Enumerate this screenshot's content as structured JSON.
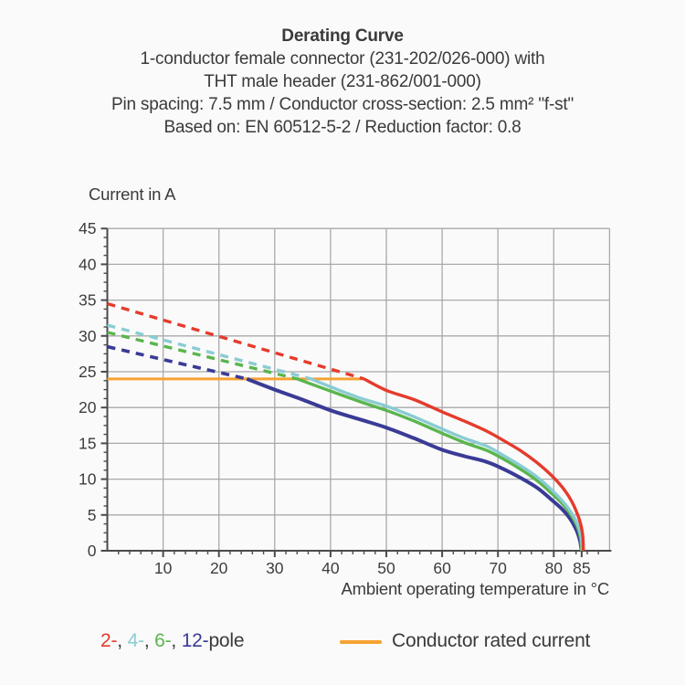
{
  "header": {
    "title": "Derating Curve",
    "lines": [
      "1-conductor female connector (231-202/026-000) with",
      "THT male header (231-862/001-000)",
      "Pin spacing: 7.5 mm / Conductor cross-section: 2.5 mm² \"f-st\"",
      "Based on: EN 60512-5-2 / Reduction factor: 0.8"
    ]
  },
  "chart_data": {
    "type": "line",
    "title": "Derating Curve",
    "xlabel": "Ambient operating temperature in °C",
    "ylabel": "Current in A",
    "xlim": [
      0,
      90
    ],
    "ylim": [
      0,
      45
    ],
    "x_major_ticks": [
      10,
      20,
      30,
      40,
      50,
      60,
      70,
      80,
      85
    ],
    "x_tick_labels": [
      "10",
      "20",
      "30",
      "40",
      "50",
      "60",
      "70",
      "80",
      "85"
    ],
    "y_major_ticks": [
      0,
      5,
      10,
      15,
      20,
      25,
      30,
      35,
      40,
      45
    ],
    "y_tick_labels": [
      "0",
      "5",
      "10",
      "15",
      "20",
      "25",
      "30",
      "35",
      "40",
      "45"
    ],
    "x_minor_step": 2,
    "y_minor_step": 1.25,
    "grid": true,
    "x_gridlines": [
      10,
      20,
      30,
      40,
      50,
      60,
      70,
      80,
      90
    ],
    "y_gridlines": [
      5,
      10,
      15,
      20,
      25,
      30,
      35,
      40,
      45
    ],
    "colors": {
      "grid": "#a9a9a9",
      "axis": "#4b4b4b",
      "text": "#3d3d3d"
    },
    "series": [
      {
        "name": "conductor-rated-current",
        "color": "#f7a233",
        "width": 3,
        "dash": null,
        "smooth": false,
        "points": [
          [
            0,
            24
          ],
          [
            46,
            24
          ]
        ]
      },
      {
        "name": "2-pole-limited-by-rated-current",
        "color": "#e53b2c",
        "width": 3.4,
        "dash": "9 7",
        "smooth": false,
        "points": [
          [
            0,
            34.5
          ],
          [
            46,
            24
          ]
        ]
      },
      {
        "name": "4-pole-limited-by-rated-current",
        "color": "#8accd3",
        "width": 3.4,
        "dash": "9 7",
        "smooth": false,
        "points": [
          [
            0,
            31.5
          ],
          [
            36.5,
            24
          ]
        ]
      },
      {
        "name": "6-pole-limited-by-rated-current",
        "color": "#5ab54d",
        "width": 3.4,
        "dash": "9 7",
        "smooth": false,
        "points": [
          [
            0,
            30.5
          ],
          [
            34,
            24
          ]
        ]
      },
      {
        "name": "12-pole-limited-by-rated-current",
        "color": "#3a3b96",
        "width": 3.6,
        "dash": "9 7",
        "smooth": false,
        "points": [
          [
            0,
            28.5
          ],
          [
            25,
            24
          ]
        ]
      },
      {
        "name": "12-pole-derating",
        "color": "#3a3b96",
        "width": 4,
        "dash": null,
        "smooth": true,
        "points": [
          [
            25,
            24
          ],
          [
            30,
            22.5
          ],
          [
            35,
            21.1
          ],
          [
            40,
            19.6
          ],
          [
            45,
            18.4
          ],
          [
            50,
            17.2
          ],
          [
            55,
            15.7
          ],
          [
            60,
            14.1
          ],
          [
            64,
            13.2
          ],
          [
            68,
            12.4
          ],
          [
            71,
            11.4
          ],
          [
            74,
            10.2
          ],
          [
            77,
            8.8
          ],
          [
            79.5,
            7.2
          ],
          [
            81.5,
            5.8
          ],
          [
            83,
            4.4
          ],
          [
            84.1,
            2.8
          ],
          [
            84.7,
            1.4
          ],
          [
            85,
            0
          ]
        ]
      },
      {
        "name": "6-pole-derating",
        "color": "#5ab54d",
        "width": 3.4,
        "dash": null,
        "smooth": true,
        "points": [
          [
            34,
            24
          ],
          [
            40,
            22.3
          ],
          [
            45,
            20.9
          ],
          [
            50,
            19.6
          ],
          [
            55,
            18.1
          ],
          [
            60,
            16.4
          ],
          [
            64,
            15.1
          ],
          [
            68,
            14.0
          ],
          [
            71,
            12.8
          ],
          [
            74,
            11.4
          ],
          [
            77,
            9.8
          ],
          [
            79.5,
            8.1
          ],
          [
            81.5,
            6.6
          ],
          [
            83,
            5.1
          ],
          [
            84.2,
            3.4
          ],
          [
            84.8,
            1.8
          ],
          [
            85,
            0
          ]
        ]
      },
      {
        "name": "4-pole-derating",
        "color": "#8accd3",
        "width": 3.4,
        "dash": null,
        "smooth": true,
        "points": [
          [
            36.5,
            24
          ],
          [
            40,
            22.9
          ],
          [
            45,
            21.4
          ],
          [
            50,
            20.2
          ],
          [
            55,
            18.7
          ],
          [
            60,
            17.0
          ],
          [
            64,
            15.7
          ],
          [
            68,
            14.6
          ],
          [
            71,
            13.3
          ],
          [
            74,
            11.9
          ],
          [
            77,
            10.3
          ],
          [
            79.5,
            8.6
          ],
          [
            81.5,
            7.0
          ],
          [
            83,
            5.5
          ],
          [
            84.2,
            3.8
          ],
          [
            84.9,
            2.0
          ],
          [
            85.1,
            0
          ]
        ]
      },
      {
        "name": "2-pole-derating",
        "color": "#e53b2c",
        "width": 3.4,
        "dash": null,
        "smooth": true,
        "points": [
          [
            46,
            24
          ],
          [
            50,
            22.4
          ],
          [
            55,
            21.1
          ],
          [
            60,
            19.4
          ],
          [
            64,
            18.1
          ],
          [
            68,
            16.7
          ],
          [
            71,
            15.4
          ],
          [
            74,
            14.0
          ],
          [
            77,
            12.3
          ],
          [
            79.5,
            10.6
          ],
          [
            81.5,
            8.9
          ],
          [
            83,
            7.2
          ],
          [
            84,
            5.6
          ],
          [
            84.8,
            3.8
          ],
          [
            85.2,
            2.0
          ],
          [
            85.3,
            0
          ]
        ]
      }
    ]
  },
  "legend": {
    "poles": [
      {
        "label": "2-",
        "color": "#e53b2c"
      },
      {
        "label": "4-",
        "color": "#8accd3"
      },
      {
        "label": "6-",
        "color": "#5ab54d"
      },
      {
        "label": "12-",
        "color": "#3a3b96"
      }
    ],
    "separator": ", ",
    "poles_suffix": "pole",
    "rated": {
      "label": "Conductor rated current",
      "color": "#f7a233"
    }
  }
}
